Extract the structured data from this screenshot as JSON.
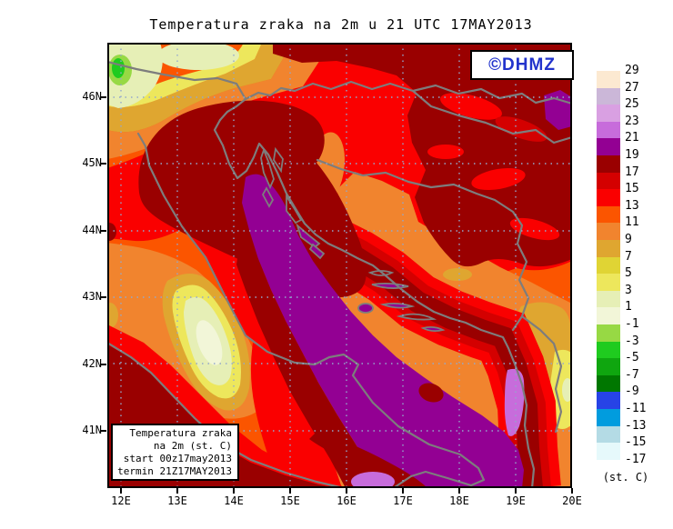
{
  "title": "Temperatura zraka na 2m u 21 UTC 17MAY2013",
  "watermark": "©DHMZ",
  "info_box": {
    "lines": [
      "Temperatura zraka",
      "na 2m (st. C)",
      "start 00z17may2013",
      "termin 21Z17MAY2013"
    ]
  },
  "x_axis": {
    "labels": [
      "12E",
      "13E",
      "14E",
      "15E",
      "16E",
      "17E",
      "18E",
      "19E",
      "20E"
    ]
  },
  "y_axis": {
    "labels": [
      "46N",
      "45N",
      "44N",
      "43N",
      "42N",
      "41N"
    ]
  },
  "legend": {
    "unit": "(st. C)",
    "labels": [
      "29",
      "27",
      "25",
      "23",
      "21",
      "19",
      "17",
      "15",
      "13",
      "11",
      "9",
      "7",
      "5",
      "3",
      "1",
      "-1",
      "-3",
      "-5",
      "-7",
      "-9",
      "-11",
      "-13",
      "-15",
      "-17"
    ],
    "cells": [
      "#FCE9D1",
      "#CBB7D8",
      "#D9A0E2",
      "#C76CDB",
      "#930093",
      "#9A0000",
      "#D40000",
      "#FA0000",
      "#FB5500",
      "#F1842E",
      "#DFA630",
      "#E0D434",
      "#EDE75C",
      "#E6EFB6",
      "#F2F6D8",
      "#97D944",
      "#1FCB1F",
      "#0FA60F",
      "#007700",
      "#2743E6",
      "#019CDE",
      "#B4DBE5",
      "#E6F9FB"
    ]
  },
  "map": {
    "grid_color": "#93A8CC",
    "coast_color": "#7D7D7D",
    "frame_color": "#000000"
  }
}
